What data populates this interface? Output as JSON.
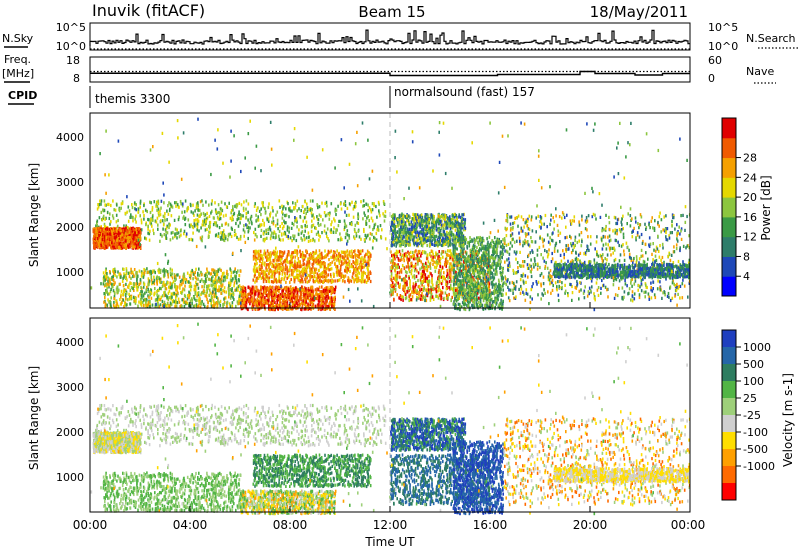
{
  "header": {
    "station": "Inuvik (fitACF)",
    "beam": "Beam 15",
    "date": "18/May/2011"
  },
  "strip_labels": {
    "nsky": "N.Sky",
    "freq_top": "Freq.",
    "freq_unit": "[MHz]",
    "cpid": "CPID",
    "nsearch": "N.Search",
    "nave": "Nave"
  },
  "cpid_segments": [
    {
      "label": "themis 3300",
      "start": "00:00"
    },
    {
      "label": "normalsound (fast) 157",
      "start": "12:00"
    }
  ],
  "chart_data": [
    {
      "type": "line",
      "title": "N.Sky / N.Search",
      "y_ticks": [
        "10^5",
        "10^0"
      ],
      "right_ticks": [
        "10^5",
        "10^0"
      ]
    },
    {
      "type": "line",
      "title": "Freq. / Nave",
      "ylabel_left": "Freq. [MHz]",
      "ylabel_right": "Nave",
      "left_ticks": [
        "18",
        "8"
      ],
      "right_ticks": [
        "60",
        "0"
      ],
      "freq_mhz": [
        {
          "t": 0.0,
          "v": 11.5
        },
        {
          "t": 12.0,
          "v": 10.6
        },
        {
          "t": 16.3,
          "v": 11.0
        },
        {
          "t": 19.6,
          "v": 12.2
        },
        {
          "t": 20.2,
          "v": 11.4
        },
        {
          "t": 21.8,
          "v": 10.8
        },
        {
          "t": 22.9,
          "v": 11.4
        },
        {
          "t": 24.0,
          "v": 11.4
        }
      ]
    },
    {
      "type": "heatmap",
      "title": "Power",
      "ylabel": "Slant Range [km]",
      "y_ticks": [
        "1000",
        "2000",
        "3000",
        "4000"
      ],
      "ylim": [
        200,
        4500
      ],
      "colorbar": {
        "label": "Power [dB]",
        "ticks": [
          "4",
          "8",
          "12",
          "16",
          "20",
          "24",
          "28"
        ],
        "colors": [
          "#0000ff",
          "#1e48b8",
          "#2e7d6a",
          "#3a9a45",
          "#8cc63f",
          "#e5d800",
          "#f5a000",
          "#f05a00",
          "#e00000"
        ]
      }
    },
    {
      "type": "heatmap",
      "title": "Velocity",
      "ylabel": "Slant Range [km]",
      "xlabel": "Time UT",
      "x_ticks": [
        "00:00",
        "04:00",
        "08:00",
        "12:00",
        "16:00",
        "20:00",
        "00:00"
      ],
      "xlim": [
        0,
        24
      ],
      "y_ticks": [
        "1000",
        "2000",
        "3000",
        "4000"
      ],
      "ylim": [
        200,
        4500
      ],
      "colorbar": {
        "label": "Velocity [m s-1]",
        "ticks": [
          "1000",
          "500",
          "100",
          "25",
          "-25",
          "-100",
          "-500",
          "-1000"
        ],
        "colors": [
          "#1f3fbf",
          "#2566a8",
          "#2e7d60",
          "#52b545",
          "#9ed07a",
          "#cfcfcf",
          "#ffde00",
          "#ffa000",
          "#ff6a00",
          "#ff0000"
        ]
      }
    }
  ]
}
